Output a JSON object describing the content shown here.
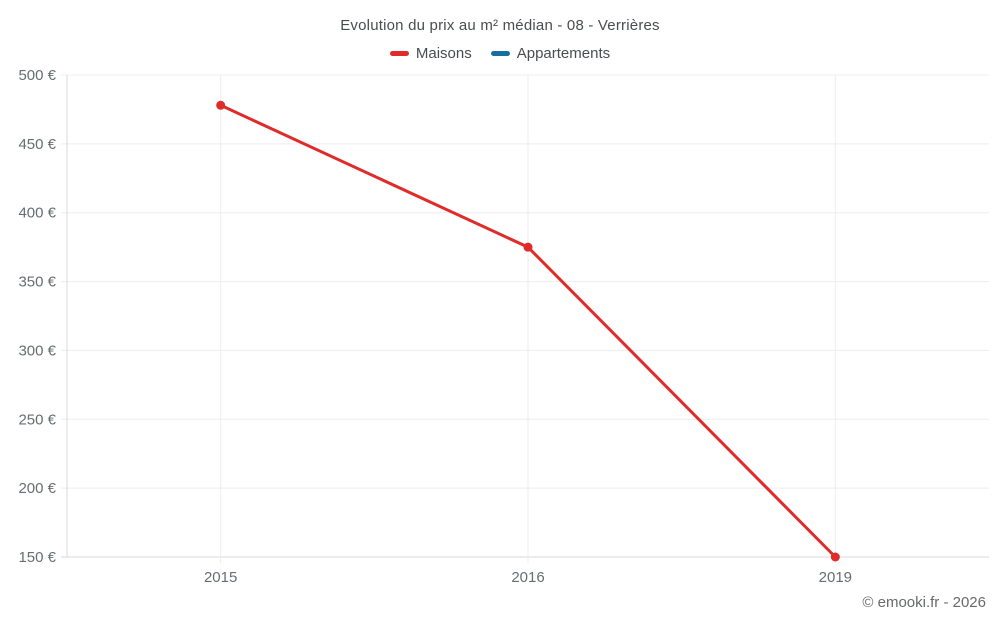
{
  "header": {
    "title": "Evolution du prix au m² médian - 08 - Verrières"
  },
  "legend": {
    "items": [
      {
        "label": "Maisons",
        "color": "#e02b2b"
      },
      {
        "label": "Appartements",
        "color": "#186f9e"
      }
    ]
  },
  "footer": {
    "copyright": "© emooki.fr - 2026"
  },
  "chart_data": {
    "type": "line",
    "title": "Evolution du prix au m² médian - 08 - Verrières",
    "xlabel": "",
    "ylabel": "",
    "categories": [
      "2015",
      "2016",
      "2019"
    ],
    "series": [
      {
        "name": "Maisons",
        "color": "#e02b2b",
        "values": [
          478,
          375,
          150
        ]
      },
      {
        "name": "Appartements",
        "color": "#186f9e",
        "values": []
      }
    ],
    "y_ticks": [
      150,
      200,
      250,
      300,
      350,
      400,
      450,
      500
    ],
    "y_tick_suffix": " €",
    "ylim": [
      150,
      500
    ],
    "grid": true,
    "legend_position": "top"
  },
  "colors": {
    "grid": "#ededed",
    "axis": "#d9d9d9",
    "tick_text": "#696d70",
    "title_text": "#4a4d4f"
  }
}
